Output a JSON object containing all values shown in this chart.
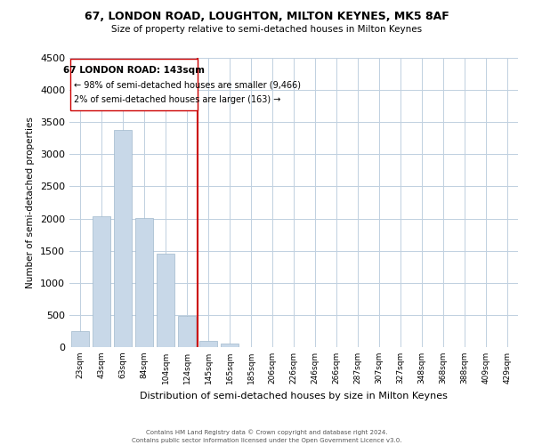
{
  "title": "67, LONDON ROAD, LOUGHTON, MILTON KEYNES, MK5 8AF",
  "subtitle": "Size of property relative to semi-detached houses in Milton Keynes",
  "xlabel": "Distribution of semi-detached houses by size in Milton Keynes",
  "ylabel": "Number of semi-detached properties",
  "bar_labels": [
    "23sqm",
    "43sqm",
    "63sqm",
    "84sqm",
    "104sqm",
    "124sqm",
    "145sqm",
    "165sqm",
    "185sqm",
    "206sqm",
    "226sqm",
    "246sqm",
    "266sqm",
    "287sqm",
    "307sqm",
    "327sqm",
    "348sqm",
    "368sqm",
    "388sqm",
    "409sqm",
    "429sqm"
  ],
  "bar_values": [
    250,
    2030,
    3380,
    2010,
    1460,
    490,
    95,
    55,
    0,
    0,
    0,
    0,
    0,
    0,
    0,
    0,
    0,
    0,
    0,
    0,
    0
  ],
  "bar_color": "#c8d8e8",
  "bar_edge_color": "#a0b8cc",
  "marker_label": "67 LONDON ROAD: 143sqm",
  "annotation_line1": "← 98% of semi-detached houses are smaller (9,466)",
  "annotation_line2": "2% of semi-detached houses are larger (163) →",
  "marker_color": "#cc0000",
  "ylim": [
    0,
    4500
  ],
  "yticks": [
    0,
    500,
    1000,
    1500,
    2000,
    2500,
    3000,
    3500,
    4000,
    4500
  ],
  "footer1": "Contains HM Land Registry data © Crown copyright and database right 2024.",
  "footer2": "Contains public sector information licensed under the Open Government Licence v3.0.",
  "bg_color": "#ffffff",
  "grid_color": "#c0d0e0"
}
